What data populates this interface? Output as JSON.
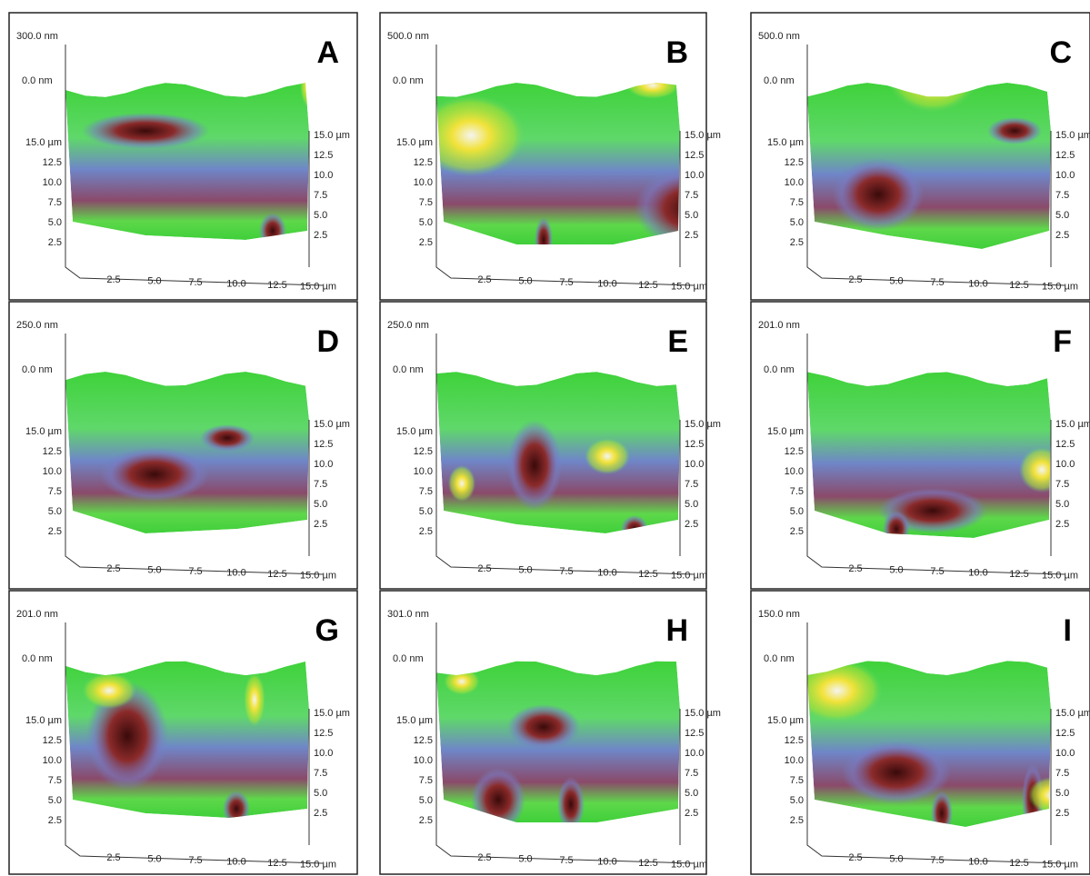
{
  "axes": {
    "zero": "0.0 nm",
    "left": [
      "15.0 µm",
      "12.5",
      "10.0",
      "7.5",
      "5.0",
      "2.5"
    ],
    "right": [
      "15.0 µm",
      "12.5",
      "10.0",
      "7.5",
      "5.0",
      "2.5"
    ],
    "bottom": [
      "2.5",
      "5.0",
      "7.5",
      "10.0",
      "12.5",
      "15.0 µm"
    ]
  },
  "panels": [
    {
      "label": "A",
      "z_max": "300.0 nm"
    },
    {
      "label": "B",
      "z_max": "500.0 nm"
    },
    {
      "label": "C",
      "z_max": "500.0 nm"
    },
    {
      "label": "D",
      "z_max": "250.0 nm"
    },
    {
      "label": "E",
      "z_max": "250.0 nm"
    },
    {
      "label": "F",
      "z_max": "201.0 nm"
    },
    {
      "label": "G",
      "z_max": "201.0 nm"
    },
    {
      "label": "H",
      "z_max": "301.0 nm"
    },
    {
      "label": "I",
      "z_max": "150.0 nm"
    }
  ]
}
